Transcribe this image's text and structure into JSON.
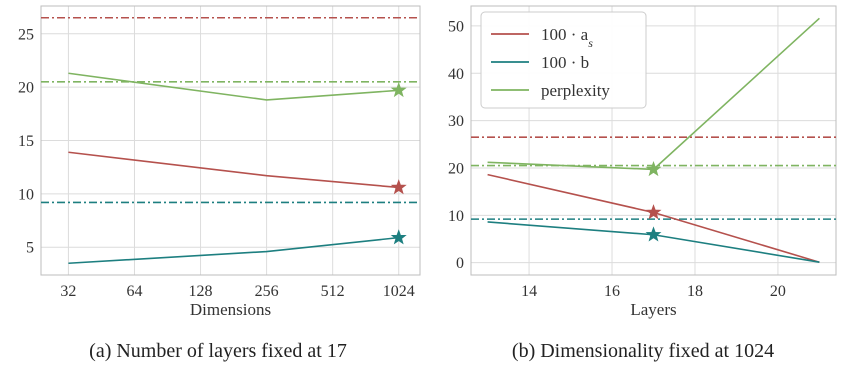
{
  "colors": {
    "a_s": "#b5514d",
    "b": "#1d7f80",
    "perplexity": "#7fb461",
    "grid": "#dcdcdc",
    "frame": "#bdbdbd"
  },
  "chart_data": [
    {
      "type": "line",
      "xlabel": "Dimensions",
      "ylabel": "",
      "x_scale": "log2",
      "xlim": [
        24,
        1280
      ],
      "ylim": [
        2.4,
        27.6
      ],
      "xticks": [
        32,
        64,
        128,
        256,
        512,
        1024
      ],
      "xtick_labels": [
        "32",
        "64",
        "128",
        "256",
        "512",
        "1024"
      ],
      "yticks": [
        5,
        10,
        15,
        20,
        25
      ],
      "ytick_labels": [
        "5",
        "10",
        "15",
        "20",
        "25"
      ],
      "grid": true,
      "legend": "none",
      "caption": "(a) Number of layers fixed at 17",
      "series": [
        {
          "key": "a_s",
          "x": [
            32,
            256,
            1024
          ],
          "values": [
            13.9,
            11.7,
            10.6
          ],
          "star_at": 1024
        },
        {
          "key": "b",
          "x": [
            32,
            256,
            1024
          ],
          "values": [
            3.5,
            4.6,
            5.9
          ],
          "star_at": 1024
        },
        {
          "key": "perplexity",
          "x": [
            32,
            256,
            1024
          ],
          "values": [
            21.3,
            18.8,
            19.7
          ],
          "star_at": 1024
        }
      ],
      "hlines": [
        {
          "key": "a_s",
          "y": 26.5,
          "style": "dash-dot"
        },
        {
          "key": "perplexity",
          "y": 20.5,
          "style": "dash-dot"
        },
        {
          "key": "b",
          "y": 9.2,
          "style": "dash-dot"
        }
      ]
    },
    {
      "type": "line",
      "xlabel": "Layers",
      "ylabel": "",
      "x_scale": "linear",
      "xlim": [
        12.6,
        21.4
      ],
      "ylim": [
        -2.6,
        54.2
      ],
      "xticks": [
        14,
        16,
        18,
        20
      ],
      "xtick_labels": [
        "14",
        "16",
        "18",
        "20"
      ],
      "yticks": [
        0,
        10,
        20,
        30,
        40,
        50
      ],
      "ytick_labels": [
        "0",
        "10",
        "20",
        "30",
        "40",
        "50"
      ],
      "grid": true,
      "legend": "top-left",
      "caption": "(b) Dimensionality fixed at 1024",
      "series": [
        {
          "key": "a_s",
          "name": "100 · a",
          "name_sub": "s",
          "x": [
            13,
            17,
            21
          ],
          "values": [
            18.6,
            10.6,
            0.1
          ],
          "star_at": 17
        },
        {
          "key": "b",
          "name": "100 · b",
          "x": [
            13,
            17,
            21
          ],
          "values": [
            8.6,
            5.9,
            0.1
          ],
          "star_at": 17
        },
        {
          "key": "perplexity",
          "name": "perplexity",
          "x": [
            13,
            17,
            21
          ],
          "values": [
            21.2,
            19.7,
            51.6
          ],
          "star_at": 17
        }
      ],
      "hlines": [
        {
          "key": "a_s",
          "y": 26.5,
          "style": "dash-dot"
        },
        {
          "key": "perplexity",
          "y": 20.5,
          "style": "dash-dot"
        },
        {
          "key": "b",
          "y": 9.2,
          "style": "dash-dot"
        }
      ]
    }
  ]
}
